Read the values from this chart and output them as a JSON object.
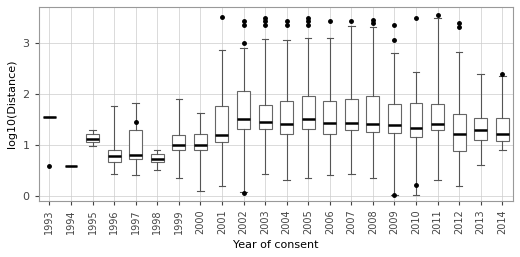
{
  "years": [
    1993,
    1994,
    1995,
    1996,
    1997,
    1998,
    1999,
    2000,
    2001,
    2002,
    2003,
    2004,
    2005,
    2006,
    2007,
    2008,
    2009,
    2010,
    2011,
    2012,
    2013,
    2014
  ],
  "boxplot_stats": [
    {
      "whislo": 1.55,
      "q1": 1.55,
      "med": 1.55,
      "q3": 1.55,
      "whishi": 1.55,
      "fliers": [
        0.58
      ]
    },
    {
      "whislo": 0.58,
      "q1": 0.58,
      "med": 0.58,
      "q3": 0.58,
      "whishi": 0.58,
      "fliers": []
    },
    {
      "whislo": 0.97,
      "q1": 1.05,
      "med": 1.12,
      "q3": 1.2,
      "whishi": 1.28,
      "fliers": []
    },
    {
      "whislo": 0.42,
      "q1": 0.65,
      "med": 0.78,
      "q3": 0.9,
      "whishi": 1.75,
      "fliers": []
    },
    {
      "whislo": 0.4,
      "q1": 0.72,
      "med": 0.8,
      "q3": 1.28,
      "whishi": 1.82,
      "fliers": [
        1.45
      ]
    },
    {
      "whislo": 0.5,
      "q1": 0.65,
      "med": 0.72,
      "q3": 0.82,
      "whishi": 0.9,
      "fliers": []
    },
    {
      "whislo": 0.35,
      "q1": 0.9,
      "med": 1.0,
      "q3": 1.18,
      "whishi": 1.9,
      "fliers": []
    },
    {
      "whislo": 0.1,
      "q1": 0.9,
      "med": 1.0,
      "q3": 1.2,
      "whishi": 1.62,
      "fliers": []
    },
    {
      "whislo": 0.18,
      "q1": 1.05,
      "med": 1.18,
      "q3": 1.75,
      "whishi": 2.85,
      "fliers": [
        3.5
      ]
    },
    {
      "whislo": 0.08,
      "q1": 1.3,
      "med": 1.5,
      "q3": 2.05,
      "whishi": 2.9,
      "fliers": [
        0.05,
        3.0,
        3.35,
        3.42
      ]
    },
    {
      "whislo": 0.42,
      "q1": 1.3,
      "med": 1.45,
      "q3": 1.78,
      "whishi": 3.08,
      "fliers": [
        3.35,
        3.42,
        3.48
      ]
    },
    {
      "whislo": 0.3,
      "q1": 1.2,
      "med": 1.4,
      "q3": 1.85,
      "whishi": 3.05,
      "fliers": [
        3.35,
        3.42
      ]
    },
    {
      "whislo": 0.35,
      "q1": 1.3,
      "med": 1.5,
      "q3": 1.95,
      "whishi": 3.1,
      "fliers": [
        3.35,
        3.42,
        3.48
      ]
    },
    {
      "whislo": 0.4,
      "q1": 1.2,
      "med": 1.42,
      "q3": 1.85,
      "whishi": 3.1,
      "fliers": [
        3.42
      ]
    },
    {
      "whislo": 0.42,
      "q1": 1.28,
      "med": 1.42,
      "q3": 1.9,
      "whishi": 3.32,
      "fliers": [
        3.42
      ]
    },
    {
      "whislo": 0.35,
      "q1": 1.25,
      "med": 1.4,
      "q3": 1.95,
      "whishi": 3.3,
      "fliers": [
        3.38,
        3.45
      ]
    },
    {
      "whislo": 0.02,
      "q1": 1.22,
      "med": 1.38,
      "q3": 1.8,
      "whishi": 2.8,
      "fliers": [
        0.02,
        3.05,
        3.35
      ]
    },
    {
      "whislo": 0.02,
      "q1": 1.15,
      "med": 1.32,
      "q3": 1.82,
      "whishi": 2.42,
      "fliers": [
        0.2,
        3.48
      ]
    },
    {
      "whislo": 0.3,
      "q1": 1.28,
      "med": 1.4,
      "q3": 1.8,
      "whishi": 3.48,
      "fliers": [
        3.55
      ]
    },
    {
      "whislo": 0.18,
      "q1": 0.88,
      "med": 1.2,
      "q3": 1.6,
      "whishi": 2.82,
      "fliers": [
        3.3,
        3.38
      ]
    },
    {
      "whislo": 0.6,
      "q1": 1.1,
      "med": 1.28,
      "q3": 1.52,
      "whishi": 2.38,
      "fliers": []
    },
    {
      "whislo": 0.9,
      "q1": 1.08,
      "med": 1.2,
      "q3": 1.52,
      "whishi": 2.35,
      "fliers": [
        2.38
      ]
    }
  ],
  "ylabel": "log10(Distance)",
  "xlabel": "Year of consent",
  "ylim": [
    -0.1,
    3.7
  ],
  "yticks": [
    0,
    1,
    2,
    3
  ],
  "background_color": "#ffffff",
  "grid_color": "#cccccc",
  "box_color": "#ffffff",
  "median_color": "#000000",
  "whisker_color": "#555555",
  "flier_color": "#000000"
}
